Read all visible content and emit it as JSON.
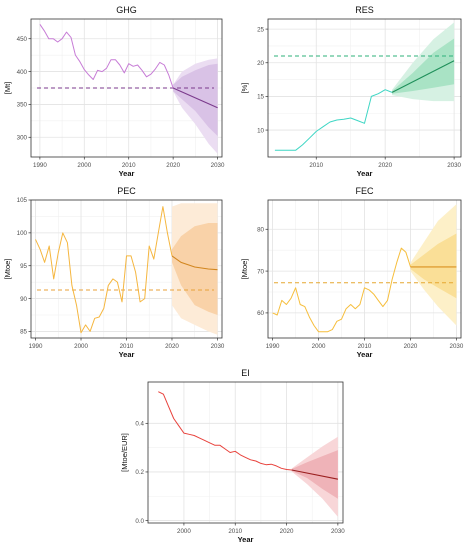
{
  "chart_data": [
    {
      "type": "line",
      "title": "GHG",
      "xlabel": "Year",
      "ylabel": "[Mt]",
      "xlim": [
        1988,
        2031
      ],
      "ylim": [
        270,
        480
      ],
      "xticks": [
        1990,
        2000,
        2010,
        2020,
        2030
      ],
      "yticks": [
        300,
        350,
        400,
        450
      ],
      "grid": true,
      "colors": {
        "line": "#C77CD6",
        "forecast": "#7B3A8C",
        "band_outer": "#EBDDF2",
        "band_inner": "#D9C2E6",
        "target": "#7B3A8C"
      },
      "series": [
        {
          "x": [
            1990,
            1991,
            1992,
            1993,
            1994,
            1995,
            1996,
            1997,
            1998,
            1999,
            2000,
            2001,
            2002,
            2003,
            2004,
            2005,
            2006,
            2007,
            2008,
            2009,
            2010,
            2011,
            2012,
            2013,
            2014,
            2015,
            2016,
            2017,
            2018,
            2019,
            2020
          ],
          "values": [
            472,
            462,
            450,
            450,
            445,
            450,
            460,
            452,
            425,
            415,
            403,
            395,
            388,
            402,
            400,
            405,
            418,
            418,
            410,
            398,
            412,
            408,
            410,
            402,
            392,
            396,
            404,
            414,
            410,
            395,
            375
          ]
        }
      ],
      "forecast": {
        "x": [
          2020,
          2030
        ],
        "values": [
          375,
          345
        ]
      },
      "band_inner": {
        "x": [
          2020,
          2022,
          2025,
          2028,
          2030
        ],
        "upper": [
          380,
          392,
          402,
          410,
          412
        ],
        "lower": [
          370,
          358,
          340,
          315,
          302
        ]
      },
      "band_outer": {
        "x": [
          2020,
          2022,
          2025,
          2028,
          2030
        ],
        "upper": [
          380,
          400,
          412,
          418,
          420
        ],
        "lower": [
          370,
          345,
          320,
          290,
          275
        ]
      },
      "target_line": 375
    },
    {
      "type": "line",
      "title": "RES",
      "xlabel": "Year",
      "ylabel": "[%]",
      "xlim": [
        2003,
        2031
      ],
      "ylim": [
        6,
        26.5
      ],
      "xticks": [
        2010,
        2020,
        2030
      ],
      "yticks": [
        10,
        15,
        20,
        25
      ],
      "grid": true,
      "colors": {
        "line": "#3ED6C4",
        "forecast": "#1E8F5A",
        "band_outer": "#D6F1E3",
        "band_inner": "#A9E3C5",
        "target": "#2DB07A"
      },
      "series": [
        {
          "x": [
            2004,
            2005,
            2006,
            2007,
            2008,
            2009,
            2010,
            2011,
            2012,
            2013,
            2014,
            2015,
            2016,
            2017,
            2018,
            2019,
            2020,
            2021
          ],
          "values": [
            7,
            7,
            7,
            7,
            7.8,
            8.8,
            9.8,
            10.5,
            11.2,
            11.5,
            11.6,
            11.8,
            11.4,
            11,
            15,
            15.4,
            16,
            15.6
          ]
        }
      ],
      "forecast": {
        "x": [
          2021,
          2030
        ],
        "values": [
          15.6,
          20.3
        ]
      },
      "band_inner": {
        "x": [
          2021,
          2024,
          2027,
          2030
        ],
        "upper": [
          15.8,
          18.5,
          21.5,
          23.6
        ],
        "lower": [
          15.4,
          15.8,
          16.3,
          16.8
        ]
      },
      "band_outer": {
        "x": [
          2021,
          2024,
          2027,
          2030
        ],
        "upper": [
          16,
          20,
          23.5,
          26
        ],
        "lower": [
          15.2,
          14.6,
          14.3,
          14.3
        ]
      },
      "target_line": 21
    },
    {
      "type": "line",
      "title": "PEC",
      "xlabel": "Year",
      "ylabel": "[Mtoe]",
      "xlim": [
        1989,
        2031
      ],
      "ylim": [
        84,
        105
      ],
      "xticks": [
        1990,
        2000,
        2010,
        2020,
        2030
      ],
      "yticks": [
        85,
        90,
        95,
        100,
        105
      ],
      "grid": true,
      "colors": {
        "line": "#F5B63F",
        "forecast": "#D2861F",
        "band_outer": "#FDEBD7",
        "band_inner": "#F9D2A8",
        "target": "#E8A23A"
      },
      "series": [
        {
          "x": [
            1990,
            1991,
            1992,
            1993,
            1994,
            1995,
            1996,
            1997,
            1998,
            1999,
            2000,
            2001,
            2002,
            2003,
            2004,
            2005,
            2006,
            2007,
            2008,
            2009,
            2010,
            2011,
            2012,
            2013,
            2014,
            2015,
            2016,
            2017,
            2018,
            2019,
            2020
          ],
          "values": [
            99,
            97.5,
            95.5,
            98,
            93,
            97,
            100,
            98.5,
            92,
            89,
            84.8,
            86,
            85,
            87,
            87.2,
            88.5,
            92,
            93,
            92.5,
            89.5,
            96.5,
            96.5,
            94,
            89.5,
            90,
            98,
            96,
            100,
            104,
            100,
            96.5
          ]
        }
      ],
      "forecast": {
        "x": [
          2020,
          2022,
          2025,
          2028,
          2030
        ],
        "values": [
          96.5,
          95.5,
          94.8,
          94.5,
          94.4
        ]
      },
      "band_inner": {
        "x": [
          2020,
          2022,
          2025,
          2028,
          2030
        ],
        "upper": [
          97.5,
          99.5,
          101,
          101.5,
          101.5
        ],
        "lower": [
          95.5,
          92,
          89,
          88,
          87.5
        ]
      },
      "band_outer": {
        "x": [
          2020,
          2022,
          2025,
          2028,
          2030
        ],
        "upper": [
          104,
          104.5,
          104.5,
          104.5,
          104.5
        ],
        "lower": [
          89,
          87,
          86,
          85,
          84.5
        ]
      },
      "target_line": 91.3
    },
    {
      "type": "line",
      "title": "FEC",
      "xlabel": "Year",
      "ylabel": "[Mtoe]",
      "xlim": [
        1989,
        2031
      ],
      "ylim": [
        54,
        87
      ],
      "xticks": [
        1990,
        2000,
        2010,
        2020,
        2030
      ],
      "yticks": [
        60,
        70,
        80
      ],
      "grid": true,
      "colors": {
        "line": "#F6BE3C",
        "forecast": "#D9911F",
        "band_outer": "#FDF0C8",
        "band_inner": "#FADF97",
        "target": "#E6A730"
      },
      "series": [
        {
          "x": [
            1990,
            1991,
            1992,
            1993,
            1994,
            1995,
            1996,
            1997,
            1998,
            1999,
            2000,
            2001,
            2002,
            2003,
            2004,
            2005,
            2006,
            2007,
            2008,
            2009,
            2010,
            2011,
            2012,
            2013,
            2014,
            2015,
            2016,
            2017,
            2018,
            2019,
            2020
          ],
          "values": [
            60,
            59.5,
            63,
            62,
            63.5,
            66,
            62,
            61.5,
            59,
            57,
            55.5,
            55.5,
            55.5,
            56,
            58,
            58.5,
            61,
            62,
            61,
            62,
            66,
            65.5,
            64.5,
            63,
            61.5,
            63,
            68,
            72,
            75.5,
            74.5,
            71
          ]
        }
      ],
      "forecast": {
        "x": [
          2020,
          2030
        ],
        "values": [
          71,
          71
        ]
      },
      "band_inner": {
        "x": [
          2020,
          2023,
          2026,
          2030
        ],
        "upper": [
          71.5,
          74,
          76.5,
          79
        ],
        "lower": [
          70.5,
          68,
          66,
          63.5
        ]
      },
      "band_outer": {
        "x": [
          2020,
          2023,
          2026,
          2030
        ],
        "upper": [
          72,
          77,
          82,
          86
        ],
        "lower": [
          70,
          65.5,
          61.5,
          57
        ]
      },
      "target_line": 67.2
    },
    {
      "type": "line",
      "title": "EI",
      "xlabel": "Year",
      "ylabel": "[Mtoe/EUR]",
      "xlim": [
        1993,
        2031
      ],
      "ylim": [
        -0.01,
        0.57
      ],
      "xticks": [
        2000,
        2010,
        2020,
        2030
      ],
      "yticks": [
        0.0,
        0.2,
        0.4
      ],
      "ytick_labels": [
        "0.0",
        "0.2",
        "0.4"
      ],
      "grid": true,
      "colors": {
        "line": "#E8423C",
        "forecast": "#9B1F1F",
        "band_outer": "#F8D6D8",
        "band_inner": "#EFB3B8",
        "target": "#9B1F1F"
      },
      "series": [
        {
          "x": [
            1995,
            1996,
            1997,
            1998,
            1999,
            2000,
            2001,
            2002,
            2003,
            2004,
            2005,
            2006,
            2007,
            2008,
            2009,
            2010,
            2011,
            2012,
            2013,
            2014,
            2015,
            2016,
            2017,
            2018,
            2019,
            2020,
            2021
          ],
          "values": [
            0.53,
            0.52,
            0.47,
            0.42,
            0.39,
            0.36,
            0.355,
            0.35,
            0.34,
            0.33,
            0.32,
            0.31,
            0.31,
            0.295,
            0.28,
            0.285,
            0.27,
            0.26,
            0.25,
            0.245,
            0.235,
            0.23,
            0.232,
            0.225,
            0.215,
            0.21,
            0.208
          ]
        }
      ],
      "forecast": {
        "x": [
          2021,
          2030
        ],
        "values": [
          0.208,
          0.17
        ]
      },
      "band_inner": {
        "x": [
          2021,
          2024,
          2027,
          2030
        ],
        "upper": [
          0.212,
          0.24,
          0.265,
          0.29
        ],
        "lower": [
          0.204,
          0.175,
          0.13,
          0.09
        ]
      },
      "band_outer": {
        "x": [
          2021,
          2024,
          2027,
          2030
        ],
        "upper": [
          0.214,
          0.26,
          0.305,
          0.345
        ],
        "lower": [
          0.202,
          0.15,
          0.09,
          0.015
        ]
      }
    }
  ]
}
